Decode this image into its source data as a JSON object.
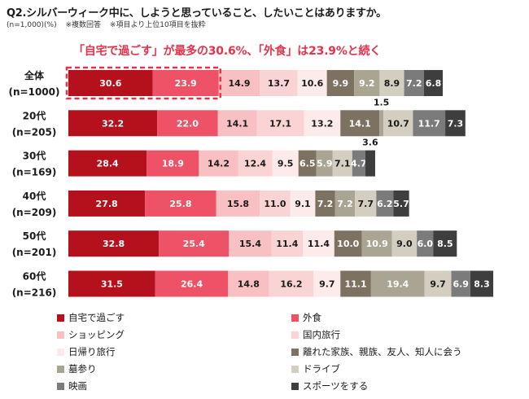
{
  "title": "Q2.シルバーウィーク中に、しようと思っていること、したいことはありますか。",
  "notes": [
    "(n=1,000)(%)",
    "※複数回答",
    "※項目より上位10項目を抜粋"
  ],
  "headline": "「自宅で過ごす」が最多の30.6%、「外食」は23.9%と続く",
  "colors": [
    "#b4111d",
    "#ee5266",
    "#f9c0c4",
    "#fad4d4",
    "#fdeaea",
    "#7d7261",
    "#aaa493",
    "#d4cec0",
    "#7b7b7b",
    "#3e3e3e"
  ],
  "chart_data": {
    "type": "bar",
    "orientation": "horizontal",
    "stacked": true,
    "categories": [
      "全体\n(n=1000)",
      "20代\n(n=205)",
      "30代\n(n=169)",
      "40代\n(n=209)",
      "50代\n(n=201)",
      "60代\n(n=216)"
    ],
    "series": [
      {
        "name": "自宅で過ごす",
        "values": [
          30.6,
          32.2,
          28.4,
          27.8,
          32.8,
          31.5
        ]
      },
      {
        "name": "外食",
        "values": [
          23.9,
          22.0,
          18.9,
          25.8,
          25.4,
          26.4
        ]
      },
      {
        "name": "ショッピング",
        "values": [
          14.9,
          14.1,
          14.2,
          15.8,
          15.4,
          14.8
        ]
      },
      {
        "name": "国内旅行",
        "values": [
          13.7,
          17.1,
          12.4,
          11.0,
          11.4,
          16.2
        ]
      },
      {
        "name": "日帰り旅行",
        "values": [
          10.6,
          13.2,
          9.5,
          9.1,
          11.4,
          9.7
        ]
      },
      {
        "name": "離れた家族、親族、友人、知人に会う",
        "values": [
          9.9,
          14.1,
          6.5,
          7.2,
          10.0,
          11.1
        ]
      },
      {
        "name": "墓参り",
        "values": [
          9.2,
          1.5,
          5.9,
          7.2,
          10.9,
          19.4
        ]
      },
      {
        "name": "ドライブ",
        "values": [
          8.9,
          10.7,
          7.1,
          7.7,
          9.0,
          9.7
        ]
      },
      {
        "name": "映画",
        "values": [
          7.2,
          11.7,
          4.7,
          6.2,
          6.0,
          6.9
        ]
      },
      {
        "name": "スポーツをする",
        "values": [
          6.8,
          7.3,
          3.6,
          5.7,
          8.5,
          8.3
        ]
      }
    ],
    "outside_labels": [
      {
        "row": 1,
        "series": 6,
        "text": "1.5"
      },
      {
        "row": 2,
        "series": 9,
        "text": "3.6"
      }
    ],
    "highlight": {
      "row": 0,
      "series": [
        0,
        1
      ]
    },
    "legend_position": "bottom"
  }
}
